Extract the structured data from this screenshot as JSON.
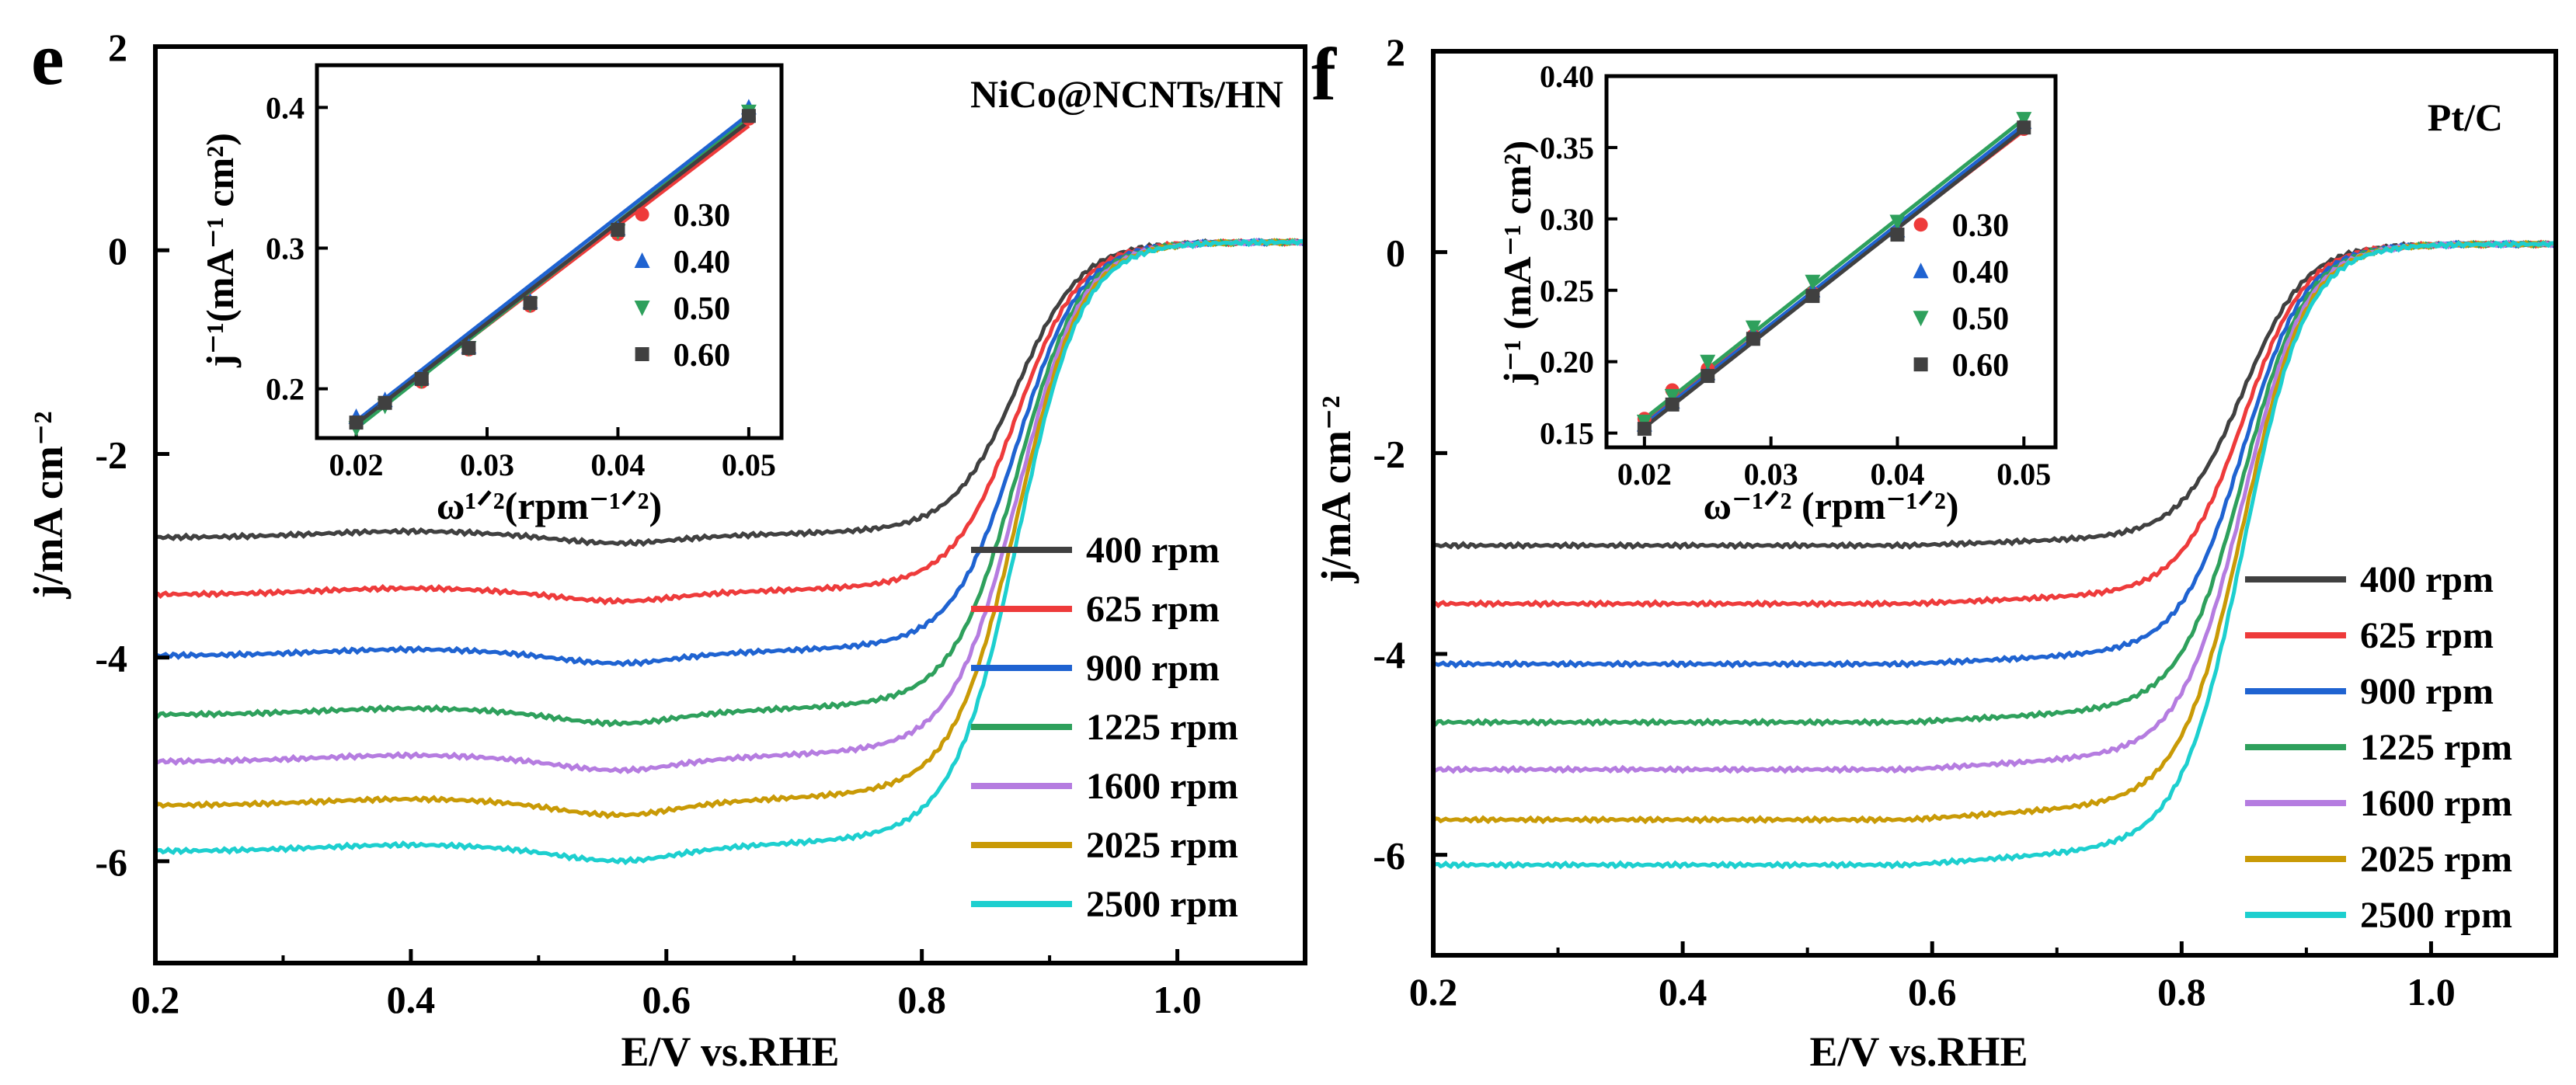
{
  "panels": [
    {
      "letter": "e",
      "title": "NiCo@NCNTs/HN",
      "xlabel": "E/V vs.RHE",
      "ylabel": "j/mA cm⁻²",
      "inset": {
        "xlabel": "ω¹ᐟ²(rpm⁻¹ᐟ²)",
        "ylabel": "j⁻¹(mA⁻¹ cm²)"
      }
    },
    {
      "letter": "f",
      "title": "Pt/C",
      "xlabel": "E/V vs.RHE",
      "ylabel": "j/mA cm⁻²",
      "inset": {
        "xlabel": "ω⁻¹ᐟ² (rpm⁻¹ᐟ²)",
        "ylabel": "j⁻¹ (mA⁻¹ cm²)"
      }
    }
  ],
  "chart_data": [
    {
      "type": "line",
      "title": "NiCo@NCNTs/HN",
      "panel": "e",
      "xlabel": "E/V vs.RHE",
      "ylabel": "j/mA cm-2",
      "xlim": [
        0.2,
        1.1
      ],
      "ylim": [
        -7,
        2
      ],
      "xticks": [
        "0.2",
        "0.4",
        "0.6",
        "0.8",
        "1.0"
      ],
      "yticks": [
        "-6",
        "-4",
        "-2",
        "0",
        "2"
      ],
      "legend_position": "bottom-right",
      "halfwave": 0.875,
      "dip": 0.56,
      "series": [
        {
          "name": "400 rpm",
          "color": "#404040",
          "limit": -2.82,
          "dipdepth": 0.06
        },
        {
          "name": "625 rpm",
          "color": "#ee3b3b",
          "limit": -3.38,
          "dipdepth": 0.07
        },
        {
          "name": "900 rpm",
          "color": "#1f63d1",
          "limit": -3.98,
          "dipdepth": 0.08
        },
        {
          "name": "1225 rpm",
          "color": "#2ea05c",
          "limit": -4.56,
          "dipdepth": 0.09
        },
        {
          "name": "1600 rpm",
          "color": "#b57ce0",
          "limit": -5.02,
          "dipdepth": 0.09
        },
        {
          "name": "2025 rpm",
          "color": "#c99a06",
          "limit": -5.45,
          "dipdepth": 0.1
        },
        {
          "name": "2500 rpm",
          "color": "#1dcfcf",
          "limit": -5.9,
          "dipdepth": 0.1
        }
      ],
      "inset": {
        "type": "scatter",
        "xlabel": "ω^1/2(rpm^-1/2)",
        "ylabel": "j^-1(mA^-1 cm^2)",
        "xlim": [
          0.017,
          0.0525
        ],
        "ylim": [
          0.165,
          0.43
        ],
        "xticks": [
          "0.02",
          "0.03",
          "0.04",
          "0.05"
        ],
        "yticks": [
          "0.2",
          "0.3",
          "0.4"
        ],
        "x": [
          0.02,
          0.0222,
          0.025,
          0.0286,
          0.0333,
          0.04,
          0.05
        ],
        "series": [
          {
            "name": "0.30",
            "marker": "circle",
            "color": "#ee3b3b",
            "y": [
              0.177,
              0.19,
              0.205,
              0.228,
              0.259,
              0.31,
              0.392
            ],
            "fit": [
              0.174,
              0.387
            ]
          },
          {
            "name": "0.40",
            "marker": "triangle",
            "color": "#1f63d1",
            "y": [
              0.18,
              0.192,
              0.208,
              0.23,
              0.262,
              0.314,
              0.4
            ],
            "fit": [
              0.177,
              0.395
            ]
          },
          {
            "name": "0.50",
            "marker": "tri-down",
            "color": "#2ea05c",
            "y": [
              0.172,
              0.188,
              0.206,
              0.229,
              0.26,
              0.312,
              0.397
            ],
            "fit": [
              0.172,
              0.392
            ]
          },
          {
            "name": "0.60",
            "marker": "square",
            "color": "#404040",
            "y": [
              0.176,
              0.19,
              0.207,
              0.229,
              0.261,
              0.313,
              0.394
            ],
            "fit": [
              0.175,
              0.39
            ]
          }
        ]
      }
    },
    {
      "type": "line",
      "title": "Pt/C",
      "panel": "f",
      "xlabel": "E/V vs.RHE",
      "ylabel": "j/mA cm-2",
      "xlim": [
        0.2,
        1.1
      ],
      "ylim": [
        -7,
        2
      ],
      "xticks": [
        "0.2",
        "0.4",
        "0.6",
        "0.8",
        "1.0"
      ],
      "yticks": [
        "-6",
        "-4",
        "-2",
        "0",
        "2"
      ],
      "legend_position": "bottom-right",
      "halfwave": 0.85,
      "dip": 0,
      "series": [
        {
          "name": "400 rpm",
          "color": "#404040",
          "limit": -2.92,
          "dipdepth": 0
        },
        {
          "name": "625 rpm",
          "color": "#ee3b3b",
          "limit": -3.5,
          "dipdepth": 0
        },
        {
          "name": "900 rpm",
          "color": "#1f63d1",
          "limit": -4.1,
          "dipdepth": 0
        },
        {
          "name": "1225 rpm",
          "color": "#2ea05c",
          "limit": -4.68,
          "dipdepth": 0
        },
        {
          "name": "1600 rpm",
          "color": "#b57ce0",
          "limit": -5.15,
          "dipdepth": 0
        },
        {
          "name": "2025 rpm",
          "color": "#c99a06",
          "limit": -5.65,
          "dipdepth": 0
        },
        {
          "name": "2500 rpm",
          "color": "#1dcfcf",
          "limit": -6.1,
          "dipdepth": 0
        }
      ],
      "inset": {
        "type": "scatter",
        "xlabel": "ω^-1/2 (rpm^-1/2)",
        "ylabel": "j^-1 (mA^-1 cm^2)",
        "xlim": [
          0.017,
          0.0525
        ],
        "ylim": [
          0.14,
          0.4
        ],
        "xticks": [
          "0.02",
          "0.03",
          "0.04",
          "0.05"
        ],
        "yticks": [
          "0.15",
          "0.20",
          "0.25",
          "0.30",
          "0.35",
          "0.40"
        ],
        "x": [
          0.02,
          0.0222,
          0.025,
          0.0286,
          0.0333,
          0.04,
          0.05
        ],
        "series": [
          {
            "name": "0.30",
            "marker": "circle",
            "color": "#ee3b3b",
            "y": [
              0.16,
              0.18,
              0.195,
              0.218,
              0.248,
              0.29,
              0.363
            ],
            "fit": [
              0.158,
              0.362
            ]
          },
          {
            "name": "0.40",
            "marker": "triangle",
            "color": "#1f63d1",
            "y": [
              0.156,
              0.172,
              0.192,
              0.22,
              0.25,
              0.292,
              0.368
            ],
            "fit": [
              0.156,
              0.366
            ]
          },
          {
            "name": "0.50",
            "marker": "tri-down",
            "color": "#2ea05c",
            "y": [
              0.158,
              0.176,
              0.2,
              0.224,
              0.256,
              0.298,
              0.37
            ],
            "fit": [
              0.16,
              0.37
            ]
          },
          {
            "name": "0.60",
            "marker": "square",
            "color": "#404040",
            "y": [
              0.153,
              0.17,
              0.19,
              0.216,
              0.246,
              0.289,
              0.364
            ],
            "fit": [
              0.154,
              0.363
            ]
          }
        ]
      }
    }
  ]
}
